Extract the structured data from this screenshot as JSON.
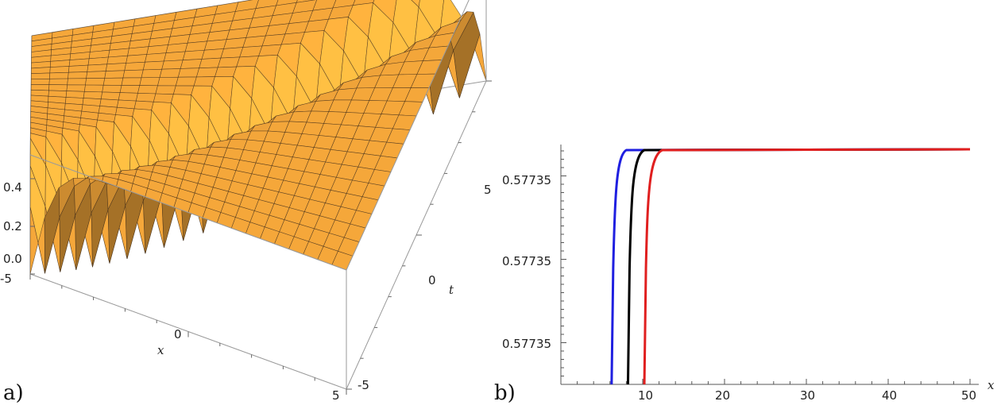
{
  "chart_data": [
    {
      "type": "surface",
      "panel_label": "a)",
      "xlabel": "x",
      "ylabel": "t",
      "x_ticks": [
        "-5",
        "0",
        "5"
      ],
      "t_ticks": [
        "-5",
        "0",
        "5"
      ],
      "z_ticks": [
        "0.0",
        "0.2",
        "0.4"
      ],
      "xlim": [
        -5,
        5
      ],
      "tlim": [
        -5,
        5
      ],
      "zlim": [
        0,
        0.5
      ],
      "surface_color": "#f5a73a",
      "mesh_color": "#3a2a1a"
    },
    {
      "type": "line",
      "panel_label": "b)",
      "xlabel": "x",
      "x_ticks": [
        "10",
        "20",
        "30",
        "40",
        "50"
      ],
      "y_tick_labels": [
        "0.57735",
        "0.57735",
        "0.57735"
      ],
      "xlim": [
        0,
        50
      ],
      "series": [
        {
          "color": "#1f1fe0",
          "onset_x": 6.2,
          "plateau_x": 8.0
        },
        {
          "color": "#000000",
          "onset_x": 8.2,
          "plateau_x": 10.2
        },
        {
          "color": "#e01f1f",
          "onset_x": 10.2,
          "plateau_x": 12.4
        }
      ]
    }
  ]
}
